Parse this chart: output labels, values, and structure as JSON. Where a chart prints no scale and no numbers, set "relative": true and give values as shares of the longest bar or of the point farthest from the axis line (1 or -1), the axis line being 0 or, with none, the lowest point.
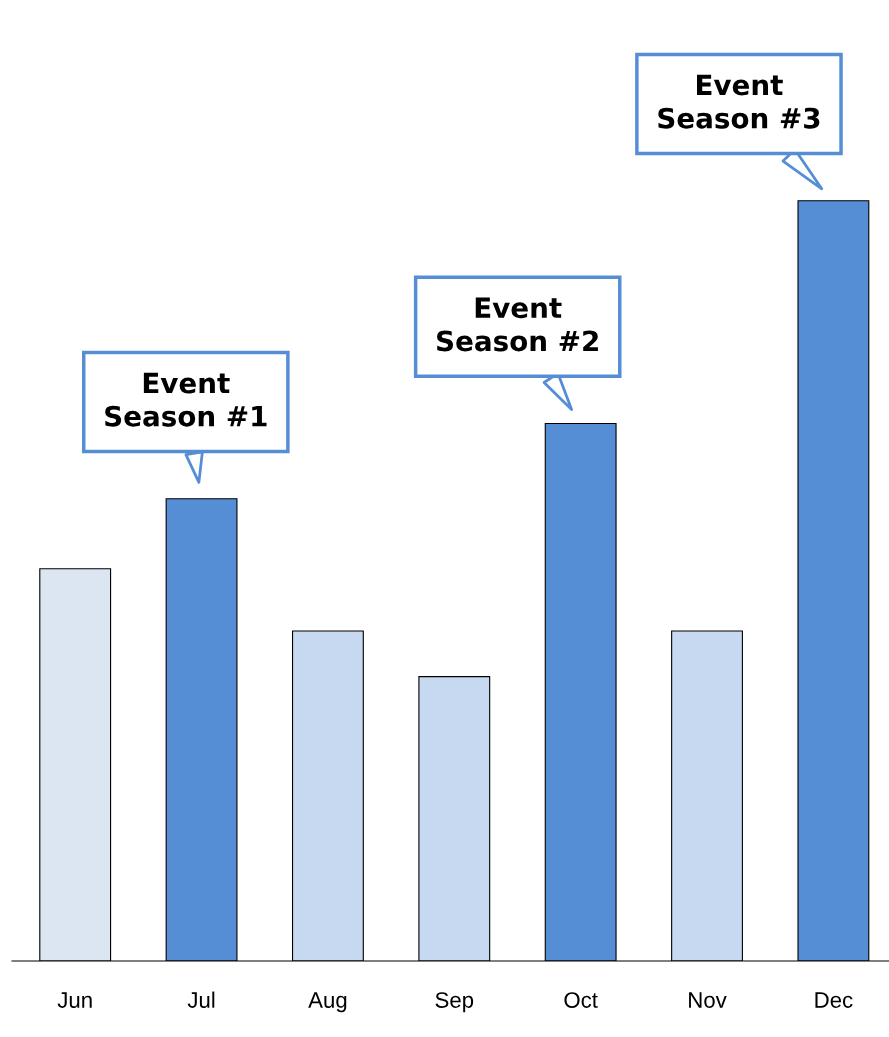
{
  "chart_data": {
    "type": "bar",
    "relative": true,
    "tick_labels": "x",
    "categories": [
      "Jun",
      "Jul",
      "Aug",
      "Sep",
      "Oct",
      "Nov",
      "Dec"
    ],
    "values": [
      0.516,
      0.608,
      0.434,
      0.374,
      0.707,
      0.434,
      1
    ],
    "colors": [
      "#dce6f2",
      "#558ed5",
      "#c6d9f1",
      "#c6d9f1",
      "#558ed5",
      "#c6d9f1",
      "#558ed5"
    ],
    "annotations": [
      {
        "text": "Event\nSeason #1",
        "x": "Jul",
        "y": 0.608
      },
      {
        "text": "Event\nSeason #2",
        "x": "Oct",
        "y": 0.707
      },
      {
        "text": "Event\nSeason #3",
        "x": "Dec",
        "y": 1
      }
    ]
  }
}
